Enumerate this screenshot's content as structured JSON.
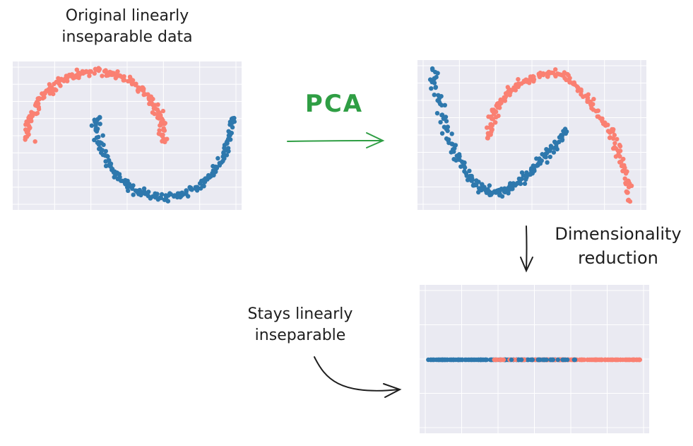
{
  "labels": {
    "original": "Original linearly\ninseparable data",
    "pca": "PCA",
    "dimred": "Dimensionality\nreduction",
    "stays": "Stays linearly\ninseparable"
  },
  "colors": {
    "class_a": "#fa8072",
    "class_b": "#2e78ad",
    "plot_bg": "#eaeaf2",
    "grid": "#ffffff",
    "pca_arrow": "#2f9e44",
    "ink": "#1e1e1e"
  },
  "chart_data": [
    {
      "type": "scatter",
      "title": "",
      "grid": true,
      "series": [
        {
          "color": "#fa8072",
          "shape": "upper arc, opening downward"
        },
        {
          "color": "#2e78ad",
          "shape": "lower arc, opening upward"
        }
      ]
    },
    {
      "type": "scatter",
      "title": "",
      "grid": true,
      "series": [
        {
          "color": "#fa8072",
          "shape": "arc after PCA rotation"
        },
        {
          "color": "#2e78ad",
          "shape": "arc after PCA rotation"
        }
      ]
    },
    {
      "type": "scatter",
      "title": "",
      "grid": true,
      "series": [
        {
          "color": "#2e78ad",
          "shape": "1-D projection, left side"
        },
        {
          "color": "#fa8072",
          "shape": "1-D projection, right side, overlapping in the middle"
        }
      ]
    }
  ]
}
